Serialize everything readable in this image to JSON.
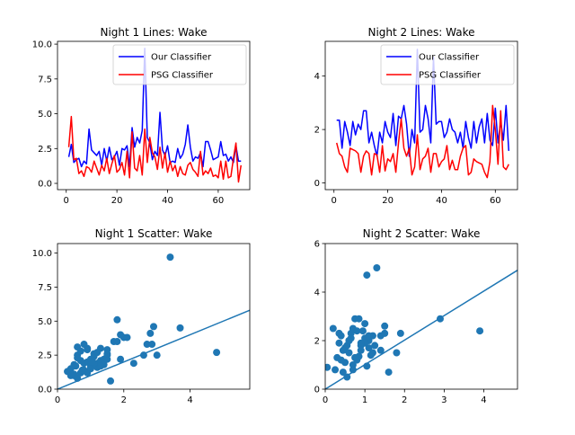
{
  "figure": {
    "background": "#ffffff"
  },
  "chart_data": [
    {
      "id": "n1-lines",
      "type": "line",
      "title": "Night 1 Lines: Wake",
      "xlim": [
        -3.45,
        72.45
      ],
      "ylim": [
        -0.45,
        10.2
      ],
      "xticks": [
        0,
        20,
        40,
        60
      ],
      "yticks": [
        0.0,
        2.5,
        5.0,
        7.5,
        10.0
      ],
      "ytick_format": 1,
      "legend": "upper-right",
      "series": [
        {
          "name": "Our Classifier",
          "color": "#0000ff",
          "x": [
            1,
            2,
            3,
            4,
            5,
            6,
            7,
            8,
            9,
            10,
            11,
            12,
            13,
            14,
            15,
            16,
            17,
            18,
            19,
            20,
            21,
            22,
            23,
            24,
            25,
            26,
            27,
            28,
            29,
            30,
            31,
            32,
            33,
            34,
            35,
            36,
            37,
            38,
            39,
            40,
            41,
            42,
            43,
            44,
            45,
            46,
            47,
            48,
            49,
            50,
            51,
            52,
            53,
            54,
            55,
            56,
            57,
            58,
            59,
            60,
            61,
            62,
            63,
            64,
            65,
            66,
            67,
            68,
            69
          ],
          "y": [
            1.9,
            2.8,
            1.5,
            1.7,
            1.8,
            1.2,
            1.6,
            1.4,
            3.9,
            2.4,
            2.2,
            2.0,
            2.3,
            1.3,
            2.5,
            1.6,
            2.6,
            1.7,
            1.9,
            2.3,
            1.3,
            2.5,
            2.4,
            2.7,
            1.2,
            4.0,
            2.6,
            3.3,
            2.9,
            3.8,
            9.7,
            3.3,
            2.9,
            1.7,
            2.3,
            2.0,
            5.1,
            2.4,
            2.0,
            2.7,
            1.5,
            1.6,
            1.5,
            2.5,
            1.8,
            2.1,
            2.8,
            4.2,
            2.6,
            1.6,
            1.9,
            1.8,
            2.2,
            1.2,
            3.0,
            3.0,
            2.4,
            1.7,
            1.8,
            1.9,
            3.0,
            2.0,
            2.1,
            1.6,
            1.9,
            1.5,
            2.7,
            1.6,
            1.6
          ]
        },
        {
          "name": "PSG Classifier",
          "color": "#ff0000",
          "x": [
            1,
            2,
            3,
            4,
            5,
            6,
            7,
            8,
            9,
            10,
            11,
            12,
            13,
            14,
            15,
            16,
            17,
            18,
            19,
            20,
            21,
            22,
            23,
            24,
            25,
            26,
            27,
            28,
            29,
            30,
            31,
            32,
            33,
            34,
            35,
            36,
            37,
            38,
            39,
            40,
            41,
            42,
            43,
            44,
            45,
            46,
            47,
            48,
            49,
            50,
            51,
            52,
            53,
            54,
            55,
            56,
            57,
            58,
            59,
            60,
            61,
            62,
            63,
            64,
            65,
            66,
            67,
            68,
            69
          ],
          "y": [
            2.6,
            4.8,
            1.7,
            1.8,
            0.7,
            0.9,
            0.5,
            1.2,
            1.1,
            0.8,
            1.6,
            1.1,
            0.6,
            1.3,
            0.9,
            1.8,
            0.7,
            1.4,
            2.0,
            0.8,
            1.0,
            1.5,
            0.6,
            2.3,
            0.4,
            3.7,
            1.1,
            0.9,
            2.0,
            0.6,
            3.9,
            1.5,
            3.3,
            2.2,
            1.9,
            1.0,
            2.6,
            1.1,
            2.2,
            0.8,
            1.6,
            0.9,
            1.3,
            0.5,
            1.2,
            0.7,
            0.6,
            1.3,
            1.5,
            1.0,
            0.8,
            0.5,
            2.3,
            0.6,
            0.9,
            0.7,
            1.1,
            0.5,
            0.6,
            0.4,
            1.6,
            0.3,
            1.6,
            0.4,
            0.5,
            1.8,
            2.9,
            0.1,
            1.3
          ]
        }
      ]
    },
    {
      "id": "n2-lines",
      "type": "line",
      "title": "Night 2 Lines: Wake",
      "xlim": [
        -3.25,
        68.25
      ],
      "ylim": [
        -0.25,
        5.3
      ],
      "xticks": [
        0,
        20,
        40,
        60
      ],
      "yticks": [
        0,
        2,
        4
      ],
      "ytick_format": 0,
      "legend": "upper-right",
      "series": [
        {
          "name": "Our Classifier",
          "color": "#0000ff",
          "x": [
            1,
            2,
            3,
            4,
            5,
            6,
            7,
            8,
            9,
            10,
            11,
            12,
            13,
            14,
            15,
            16,
            17,
            18,
            19,
            20,
            21,
            22,
            23,
            24,
            25,
            26,
            27,
            28,
            29,
            30,
            31,
            32,
            33,
            34,
            35,
            36,
            37,
            38,
            39,
            40,
            41,
            42,
            43,
            44,
            45,
            46,
            47,
            48,
            49,
            50,
            51,
            52,
            53,
            54,
            55,
            56,
            57,
            58,
            59,
            60,
            61,
            62,
            63,
            64,
            65
          ],
          "y": [
            2.35,
            2.35,
            1.3,
            2.3,
            1.9,
            1.4,
            2.3,
            1.8,
            2.2,
            2.0,
            2.7,
            2.7,
            1.5,
            1.9,
            1.4,
            1.0,
            1.9,
            1.5,
            2.3,
            1.9,
            1.7,
            2.6,
            1.4,
            2.5,
            2.4,
            2.9,
            2.2,
            1.0,
            2.0,
            1.5,
            5.0,
            1.9,
            2.0,
            2.9,
            2.4,
            1.5,
            4.7,
            2.2,
            2.3,
            2.3,
            1.7,
            1.9,
            2.4,
            2.0,
            1.9,
            1.5,
            1.9,
            1.3,
            2.3,
            1.7,
            1.3,
            2.3,
            1.5,
            2.1,
            2.4,
            1.5,
            2.6,
            1.6,
            1.4,
            2.8,
            1.5,
            2.3,
            1.6,
            2.9,
            1.2
          ]
        },
        {
          "name": "PSG Classifier",
          "color": "#ff0000",
          "x": [
            1,
            2,
            3,
            4,
            5,
            6,
            7,
            8,
            9,
            10,
            11,
            12,
            13,
            14,
            15,
            16,
            17,
            18,
            19,
            20,
            21,
            22,
            23,
            24,
            25,
            26,
            27,
            28,
            29,
            30,
            31,
            32,
            33,
            34,
            35,
            36,
            37,
            38,
            39,
            40,
            41,
            42,
            43,
            44,
            45,
            46,
            47,
            48,
            49,
            50,
            51,
            52,
            53,
            54,
            55,
            56,
            57,
            58,
            59,
            60,
            61,
            62,
            63,
            64,
            65
          ],
          "y": [
            1.5,
            1.1,
            1.0,
            0.6,
            0.4,
            1.3,
            1.25,
            1.2,
            1.1,
            0.4,
            1.0,
            1.2,
            1.1,
            0.3,
            1.1,
            1.05,
            0.4,
            1.4,
            0.45,
            0.9,
            0.8,
            1.1,
            0.4,
            1.5,
            2.4,
            1.3,
            1.0,
            1.3,
            0.3,
            0.6,
            1.8,
            0.5,
            0.9,
            1.0,
            1.3,
            0.4,
            1.1,
            1.1,
            0.6,
            0.8,
            0.9,
            1.4,
            0.5,
            0.85,
            0.5,
            0.5,
            1.0,
            1.3,
            1.4,
            0.3,
            0.4,
            0.9,
            0.8,
            0.75,
            0.7,
            0.4,
            0.2,
            0.8,
            2.9,
            2.0,
            0.7,
            2.7,
            0.6,
            0.5,
            0.7
          ]
        }
      ]
    },
    {
      "id": "n1-scatter",
      "type": "scatter",
      "title": "Night 1 Scatter: Wake",
      "xlim": [
        0,
        5.8
      ],
      "ylim": [
        0,
        10.7
      ],
      "xticks": [
        0,
        2,
        4
      ],
      "yticks": [
        0.0,
        2.5,
        5.0,
        7.5,
        10.0
      ],
      "ytick_format": 1,
      "color": "#1f77b4",
      "x": [
        0.3,
        0.4,
        0.5,
        0.5,
        0.6,
        0.6,
        0.7,
        0.7,
        0.8,
        0.8,
        0.9,
        0.9,
        1.0,
        1.0,
        1.1,
        1.1,
        1.2,
        1.2,
        1.3,
        1.3,
        1.4,
        1.4,
        1.5,
        1.5,
        1.6,
        1.7,
        1.8,
        1.8,
        1.9,
        2.0,
        2.1,
        2.3,
        2.6,
        2.7,
        2.9,
        3.4,
        3.7,
        4.8,
        0.5,
        0.6,
        0.8,
        0.9,
        1.0,
        1.1,
        1.2,
        1.3,
        1.5,
        0.4,
        0.7,
        1.0,
        0.6,
        0.9,
        1.9,
        2.8,
        2.85,
        3.0,
        1.5,
        0.55,
        0.75,
        1.05
      ],
      "y": [
        1.3,
        1.5,
        1.8,
        1.0,
        2.5,
        3.1,
        2.1,
        2.8,
        3.3,
        1.9,
        2.0,
        3.0,
        2.2,
        1.7,
        2.4,
        2.6,
        1.6,
        1.9,
        3.0,
        2.1,
        2.2,
        1.8,
        2.9,
        2.5,
        0.6,
        3.5,
        5.1,
        3.5,
        4.0,
        3.8,
        3.8,
        1.9,
        2.5,
        3.3,
        4.6,
        9.7,
        4.5,
        2.7,
        1.1,
        0.8,
        1.4,
        1.2,
        1.6,
        1.9,
        2.7,
        1.7,
        2.2,
        1.0,
        1.2,
        1.5,
        2.3,
        2.9,
        2.2,
        4.1,
        3.3,
        2.5,
        2.6,
        1.7,
        1.4,
        2.0
      ],
      "fit": {
        "x": [
          0,
          5.8
        ],
        "y": [
          0.0,
          5.8
        ]
      }
    },
    {
      "id": "n2-scatter",
      "type": "scatter",
      "title": "Night 2 Scatter: Wake",
      "xlim": [
        0,
        4.85
      ],
      "ylim": [
        0,
        6.0
      ],
      "xticks": [
        0,
        1,
        2,
        3,
        4
      ],
      "yticks": [
        0,
        2,
        4,
        6
      ],
      "ytick_format": 0,
      "color": "#1f77b4",
      "x": [
        0.05,
        0.2,
        0.25,
        0.3,
        0.35,
        0.4,
        0.45,
        0.5,
        0.5,
        0.55,
        0.6,
        0.6,
        0.65,
        0.7,
        0.7,
        0.75,
        0.8,
        0.8,
        0.85,
        0.9,
        0.9,
        0.95,
        1.0,
        1.0,
        1.05,
        1.1,
        1.1,
        1.15,
        1.2,
        1.25,
        1.3,
        1.4,
        1.5,
        1.5,
        1.6,
        1.8,
        1.9,
        2.9,
        3.9,
        1.05,
        1.4,
        0.4,
        0.55,
        0.65,
        0.85,
        1.0,
        1.2,
        0.7,
        0.45,
        0.6,
        0.9,
        0.35,
        0.75,
        1.1
      ],
      "y": [
        0.9,
        2.5,
        0.8,
        1.3,
        1.9,
        2.2,
        0.7,
        1.7,
        1.1,
        0.5,
        2.0,
        1.5,
        2.3,
        2.5,
        1.0,
        2.9,
        2.4,
        1.2,
        2.9,
        1.8,
        1.6,
        2.4,
        2.1,
        2.7,
        4.7,
        2.0,
        1.7,
        1.4,
        2.2,
        1.8,
        5.0,
        2.2,
        2.3,
        2.6,
        0.7,
        1.5,
        2.3,
        2.9,
        2.4,
        0.95,
        1.6,
        1.2,
        1.8,
        2.1,
        1.35,
        1.9,
        1.5,
        0.8,
        1.6,
        2.0,
        1.9,
        2.3,
        1.3,
        2.2
      ],
      "fit": {
        "x": [
          0,
          4.85
        ],
        "y": [
          0.0,
          4.9
        ]
      }
    }
  ]
}
